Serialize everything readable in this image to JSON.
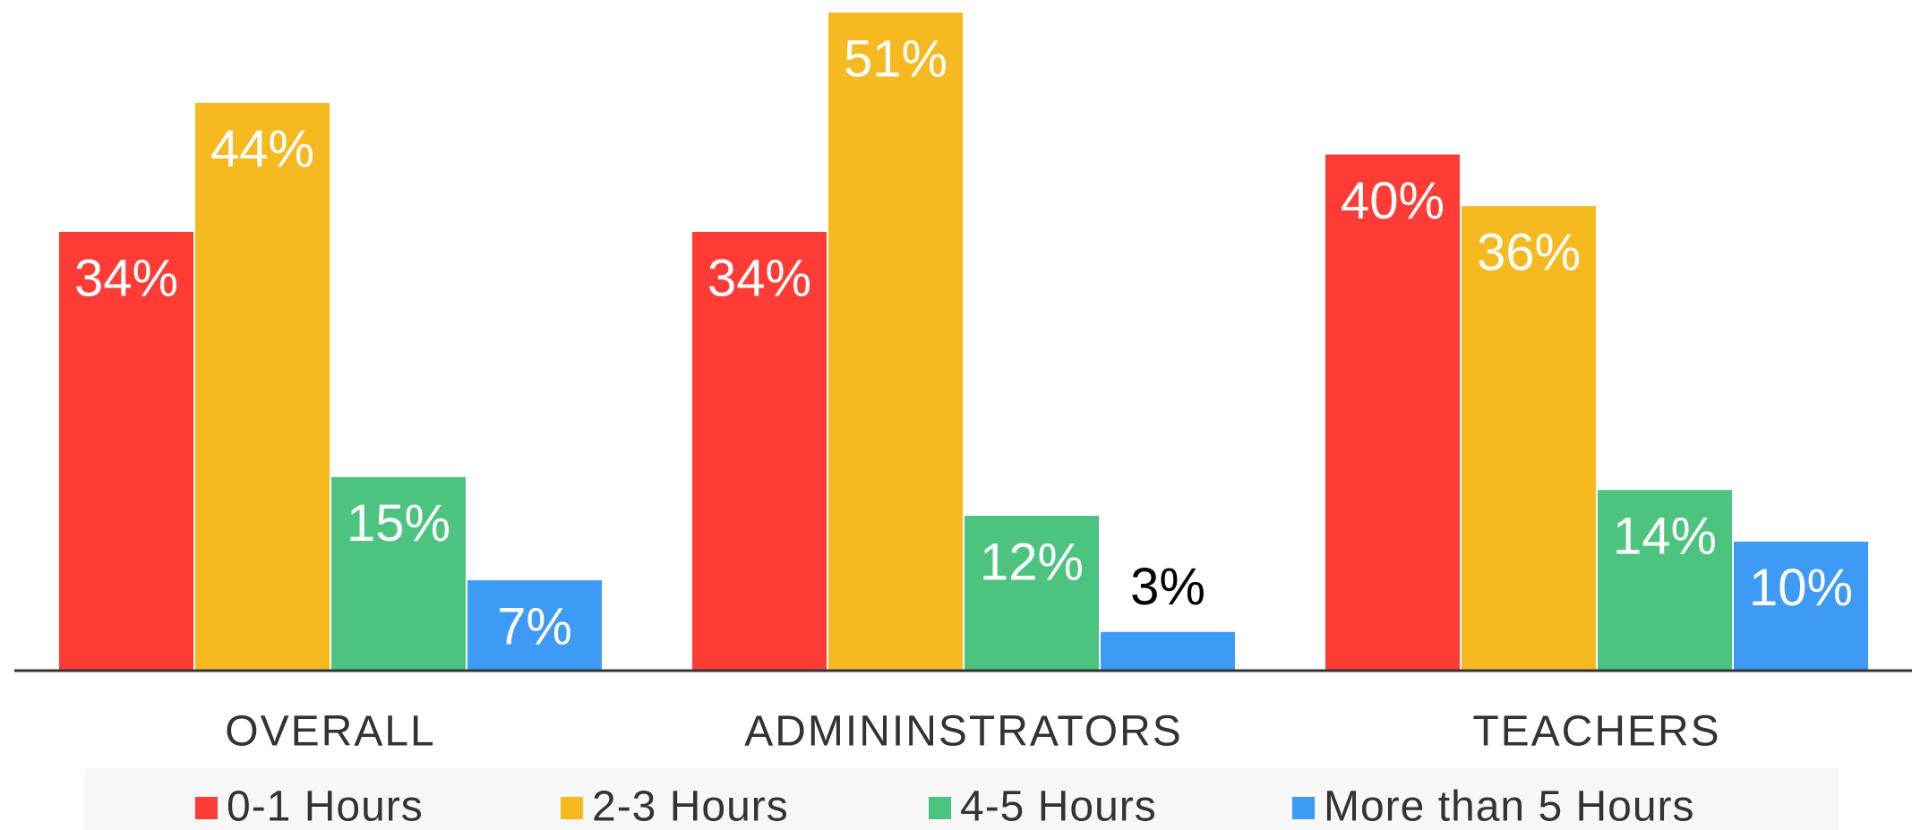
{
  "chart_data": {
    "type": "bar",
    "categories": [
      "OVERALL",
      "ADMININSTRATORS",
      "TEACHERS"
    ],
    "series": [
      {
        "name": "0-1 Hours",
        "color": "#ff3b36",
        "values": [
          34,
          34,
          40
        ],
        "value_labels": [
          "34%",
          "34%",
          "40%"
        ]
      },
      {
        "name": "2-3 Hours",
        "color": "#f6b91f",
        "values": [
          44,
          51,
          36
        ],
        "value_labels": [
          "44%",
          "51%",
          "36%"
        ]
      },
      {
        "name": "4-5 Hours",
        "color": "#4cc47f",
        "values": [
          15,
          12,
          14
        ],
        "value_labels": [
          "15%",
          "12%",
          "14%"
        ]
      },
      {
        "name": "More than 5 Hours",
        "color": "#3d9af5",
        "values": [
          7,
          3,
          10
        ],
        "value_labels": [
          "7%",
          "3%",
          "10%"
        ]
      }
    ],
    "legend": "bottom"
  }
}
